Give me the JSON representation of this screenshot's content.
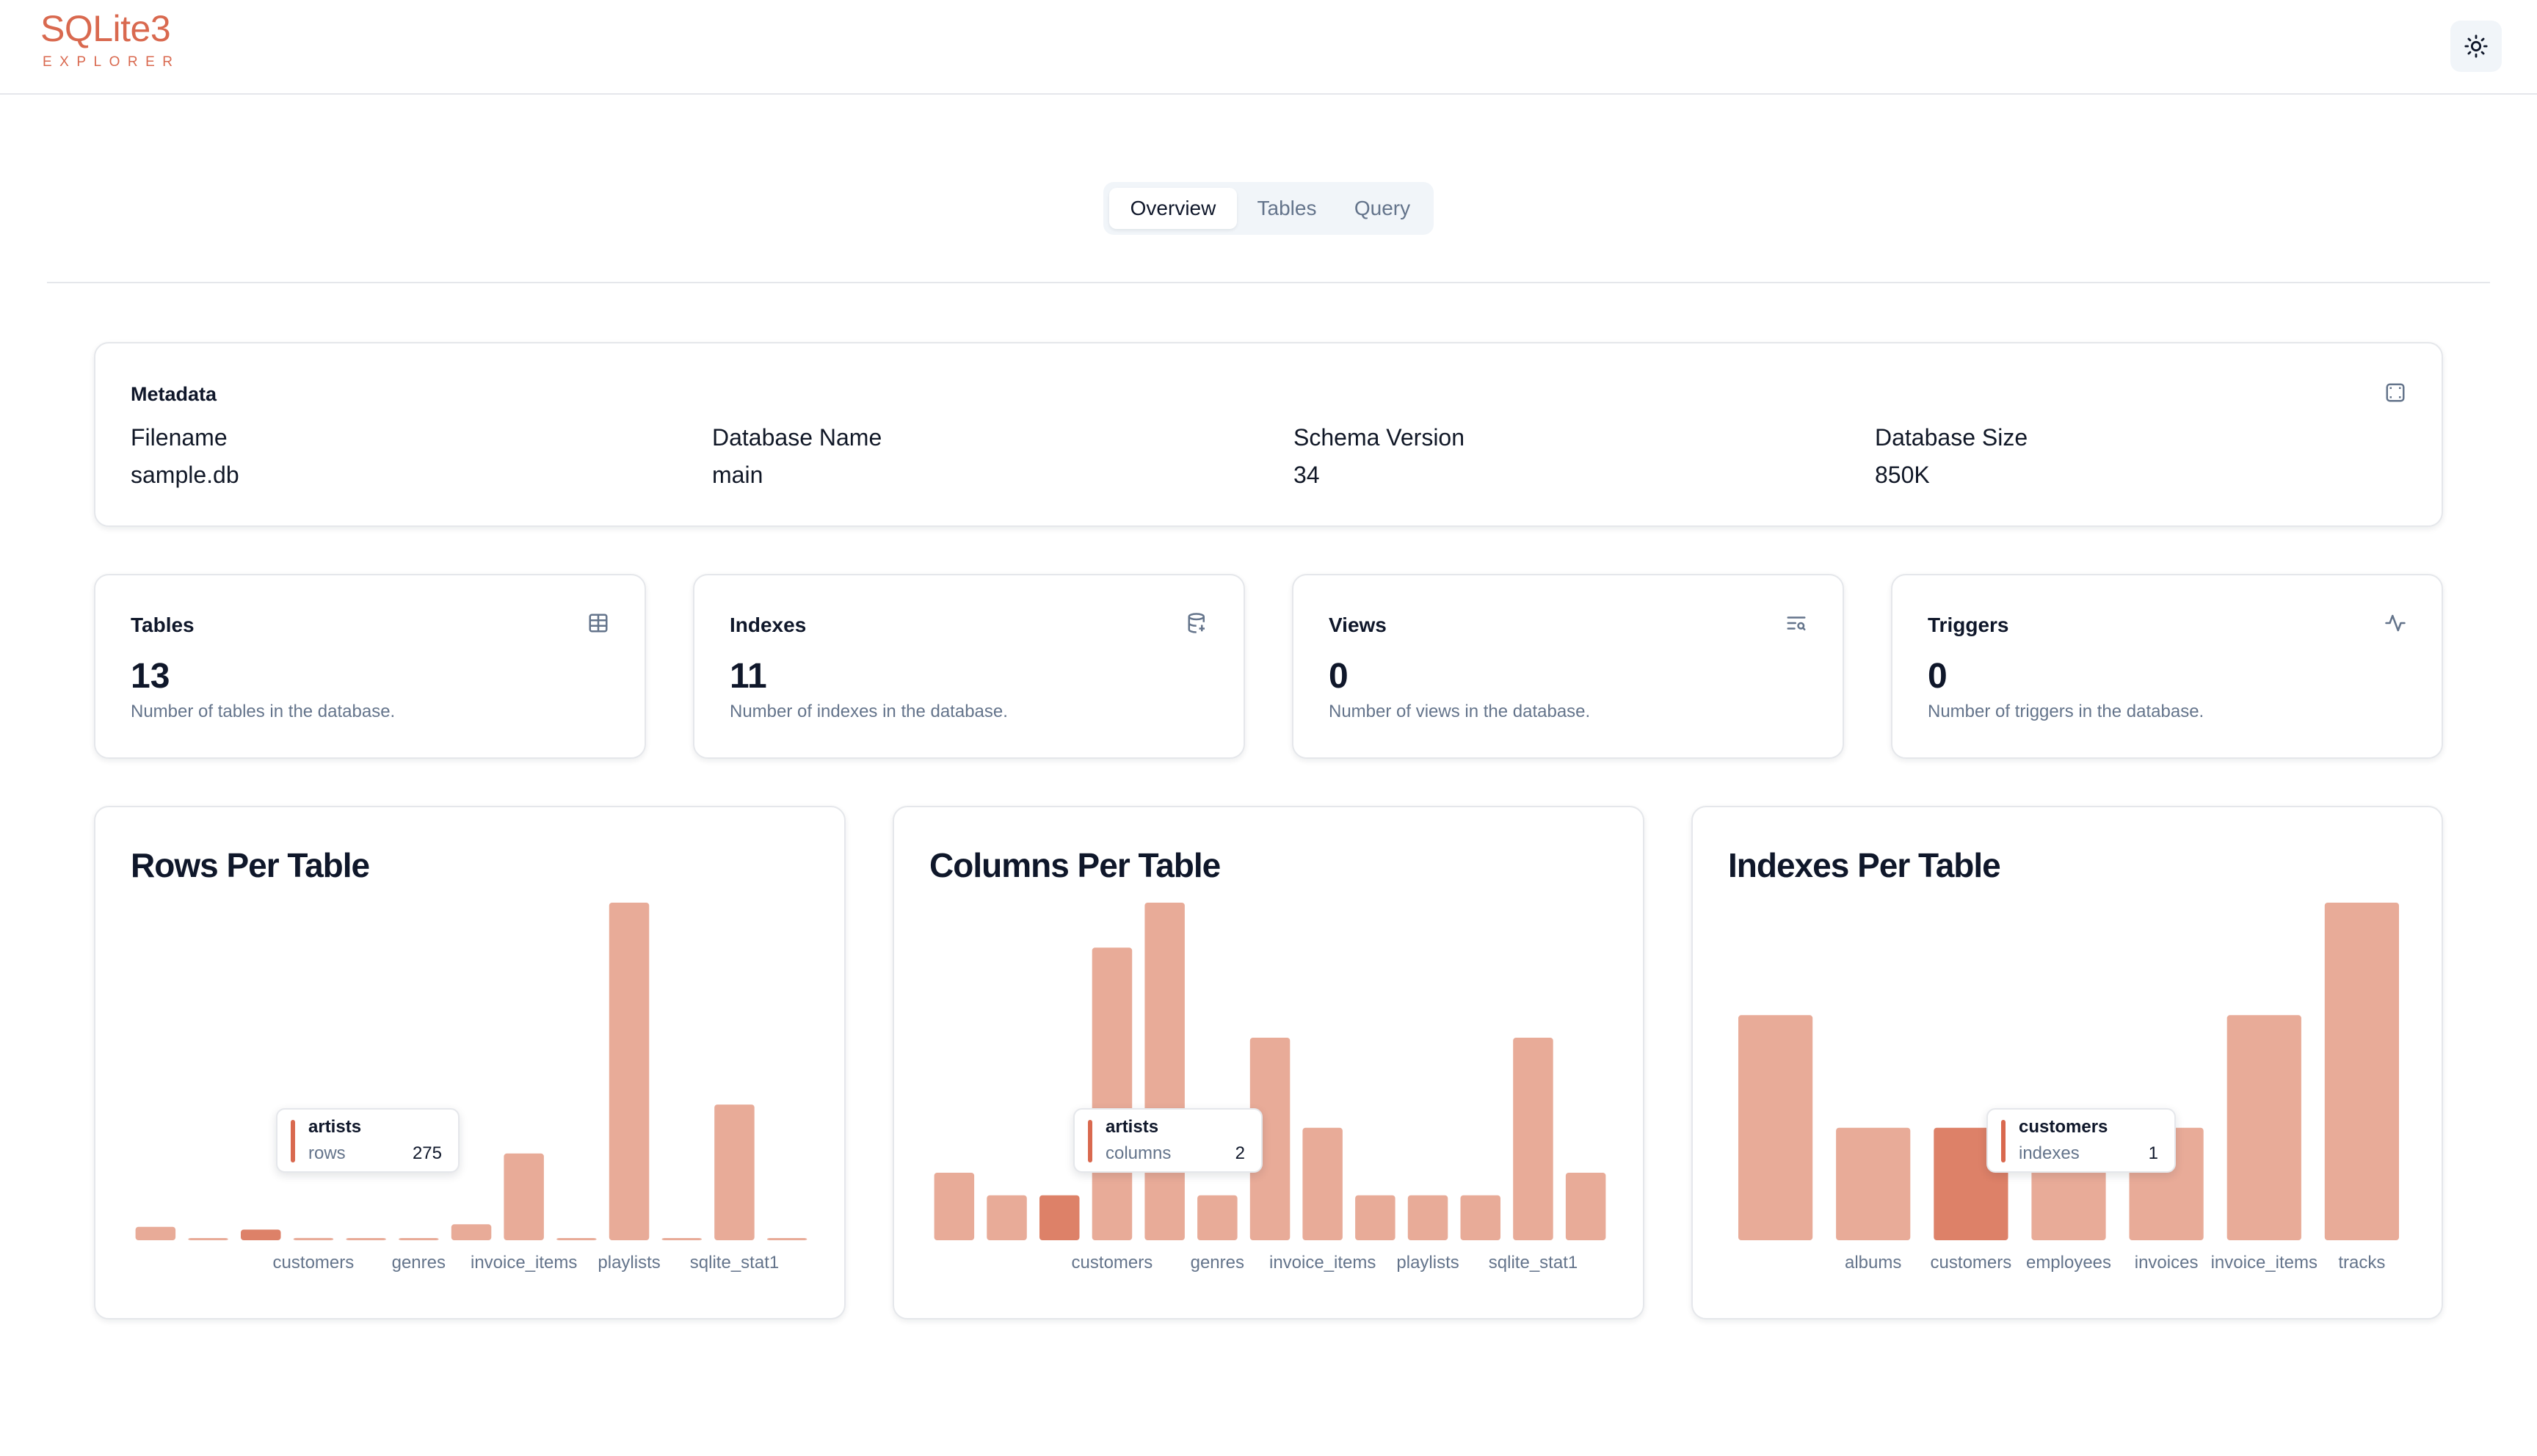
{
  "app": {
    "title": "SQLite3",
    "subtitle": "EXPLORER"
  },
  "header": {
    "theme_icon": "sun-icon"
  },
  "tabs": [
    {
      "label": "Overview",
      "active": true
    },
    {
      "label": "Tables",
      "active": false
    },
    {
      "label": "Query",
      "active": false
    }
  ],
  "metadata": {
    "title": "Metadata",
    "icon": "expand-icon",
    "fields": [
      {
        "label": "Filename",
        "value": "sample.db"
      },
      {
        "label": "Database Name",
        "value": "main"
      },
      {
        "label": "Schema Version",
        "value": "34"
      },
      {
        "label": "Database Size",
        "value": "850K"
      }
    ]
  },
  "stats": [
    {
      "title": "Tables",
      "value": "13",
      "desc": "Number of tables in the database.",
      "icon": "table-icon"
    },
    {
      "title": "Indexes",
      "value": "11",
      "desc": "Number of indexes in the database.",
      "icon": "database-icon"
    },
    {
      "title": "Views",
      "value": "0",
      "desc": "Number of views in the database.",
      "icon": "list-search-icon"
    },
    {
      "title": "Triggers",
      "value": "0",
      "desc": "Number of triggers in the database.",
      "icon": "activity-icon"
    }
  ],
  "colors": {
    "accent": "#d9694f",
    "bar": "#e8ab98",
    "bar_active": "#dd8168",
    "muted": "#64748b"
  },
  "chart_data": [
    {
      "type": "bar",
      "title": "Rows Per Table",
      "categories": [
        "",
        "",
        "",
        "customers",
        "",
        "genres",
        "",
        "invoice_items",
        "",
        "playlists",
        "",
        "sqlite_stat1",
        ""
      ],
      "values": [
        347,
        25,
        275,
        59,
        8,
        25,
        412,
        2240,
        18,
        8715,
        5,
        3503,
        13
      ],
      "ylim": [
        0,
        8715
      ],
      "highlight": 2,
      "tooltip": {
        "name": "artists",
        "key": "rows",
        "value": "275"
      }
    },
    {
      "type": "bar",
      "title": "Columns Per Table",
      "categories": [
        "",
        "",
        "",
        "customers",
        "",
        "genres",
        "",
        "invoice_items",
        "",
        "playlists",
        "",
        "sqlite_stat1",
        ""
      ],
      "values": [
        3,
        2,
        2,
        13,
        15,
        2,
        9,
        5,
        2,
        2,
        2,
        9,
        3
      ],
      "ylim": [
        0,
        15
      ],
      "highlight": 2,
      "tooltip": {
        "name": "artists",
        "key": "columns",
        "value": "2"
      }
    },
    {
      "type": "bar",
      "title": "Indexes Per Table",
      "categories": [
        "",
        "albums",
        "customers",
        "employees",
        "invoices",
        "invoice_items",
        "tracks"
      ],
      "values": [
        2,
        1,
        1,
        1,
        1,
        2,
        3
      ],
      "ylim": [
        0,
        3
      ],
      "highlight": 2,
      "tooltip": {
        "name": "customers",
        "key": "indexes",
        "value": "1"
      }
    }
  ]
}
